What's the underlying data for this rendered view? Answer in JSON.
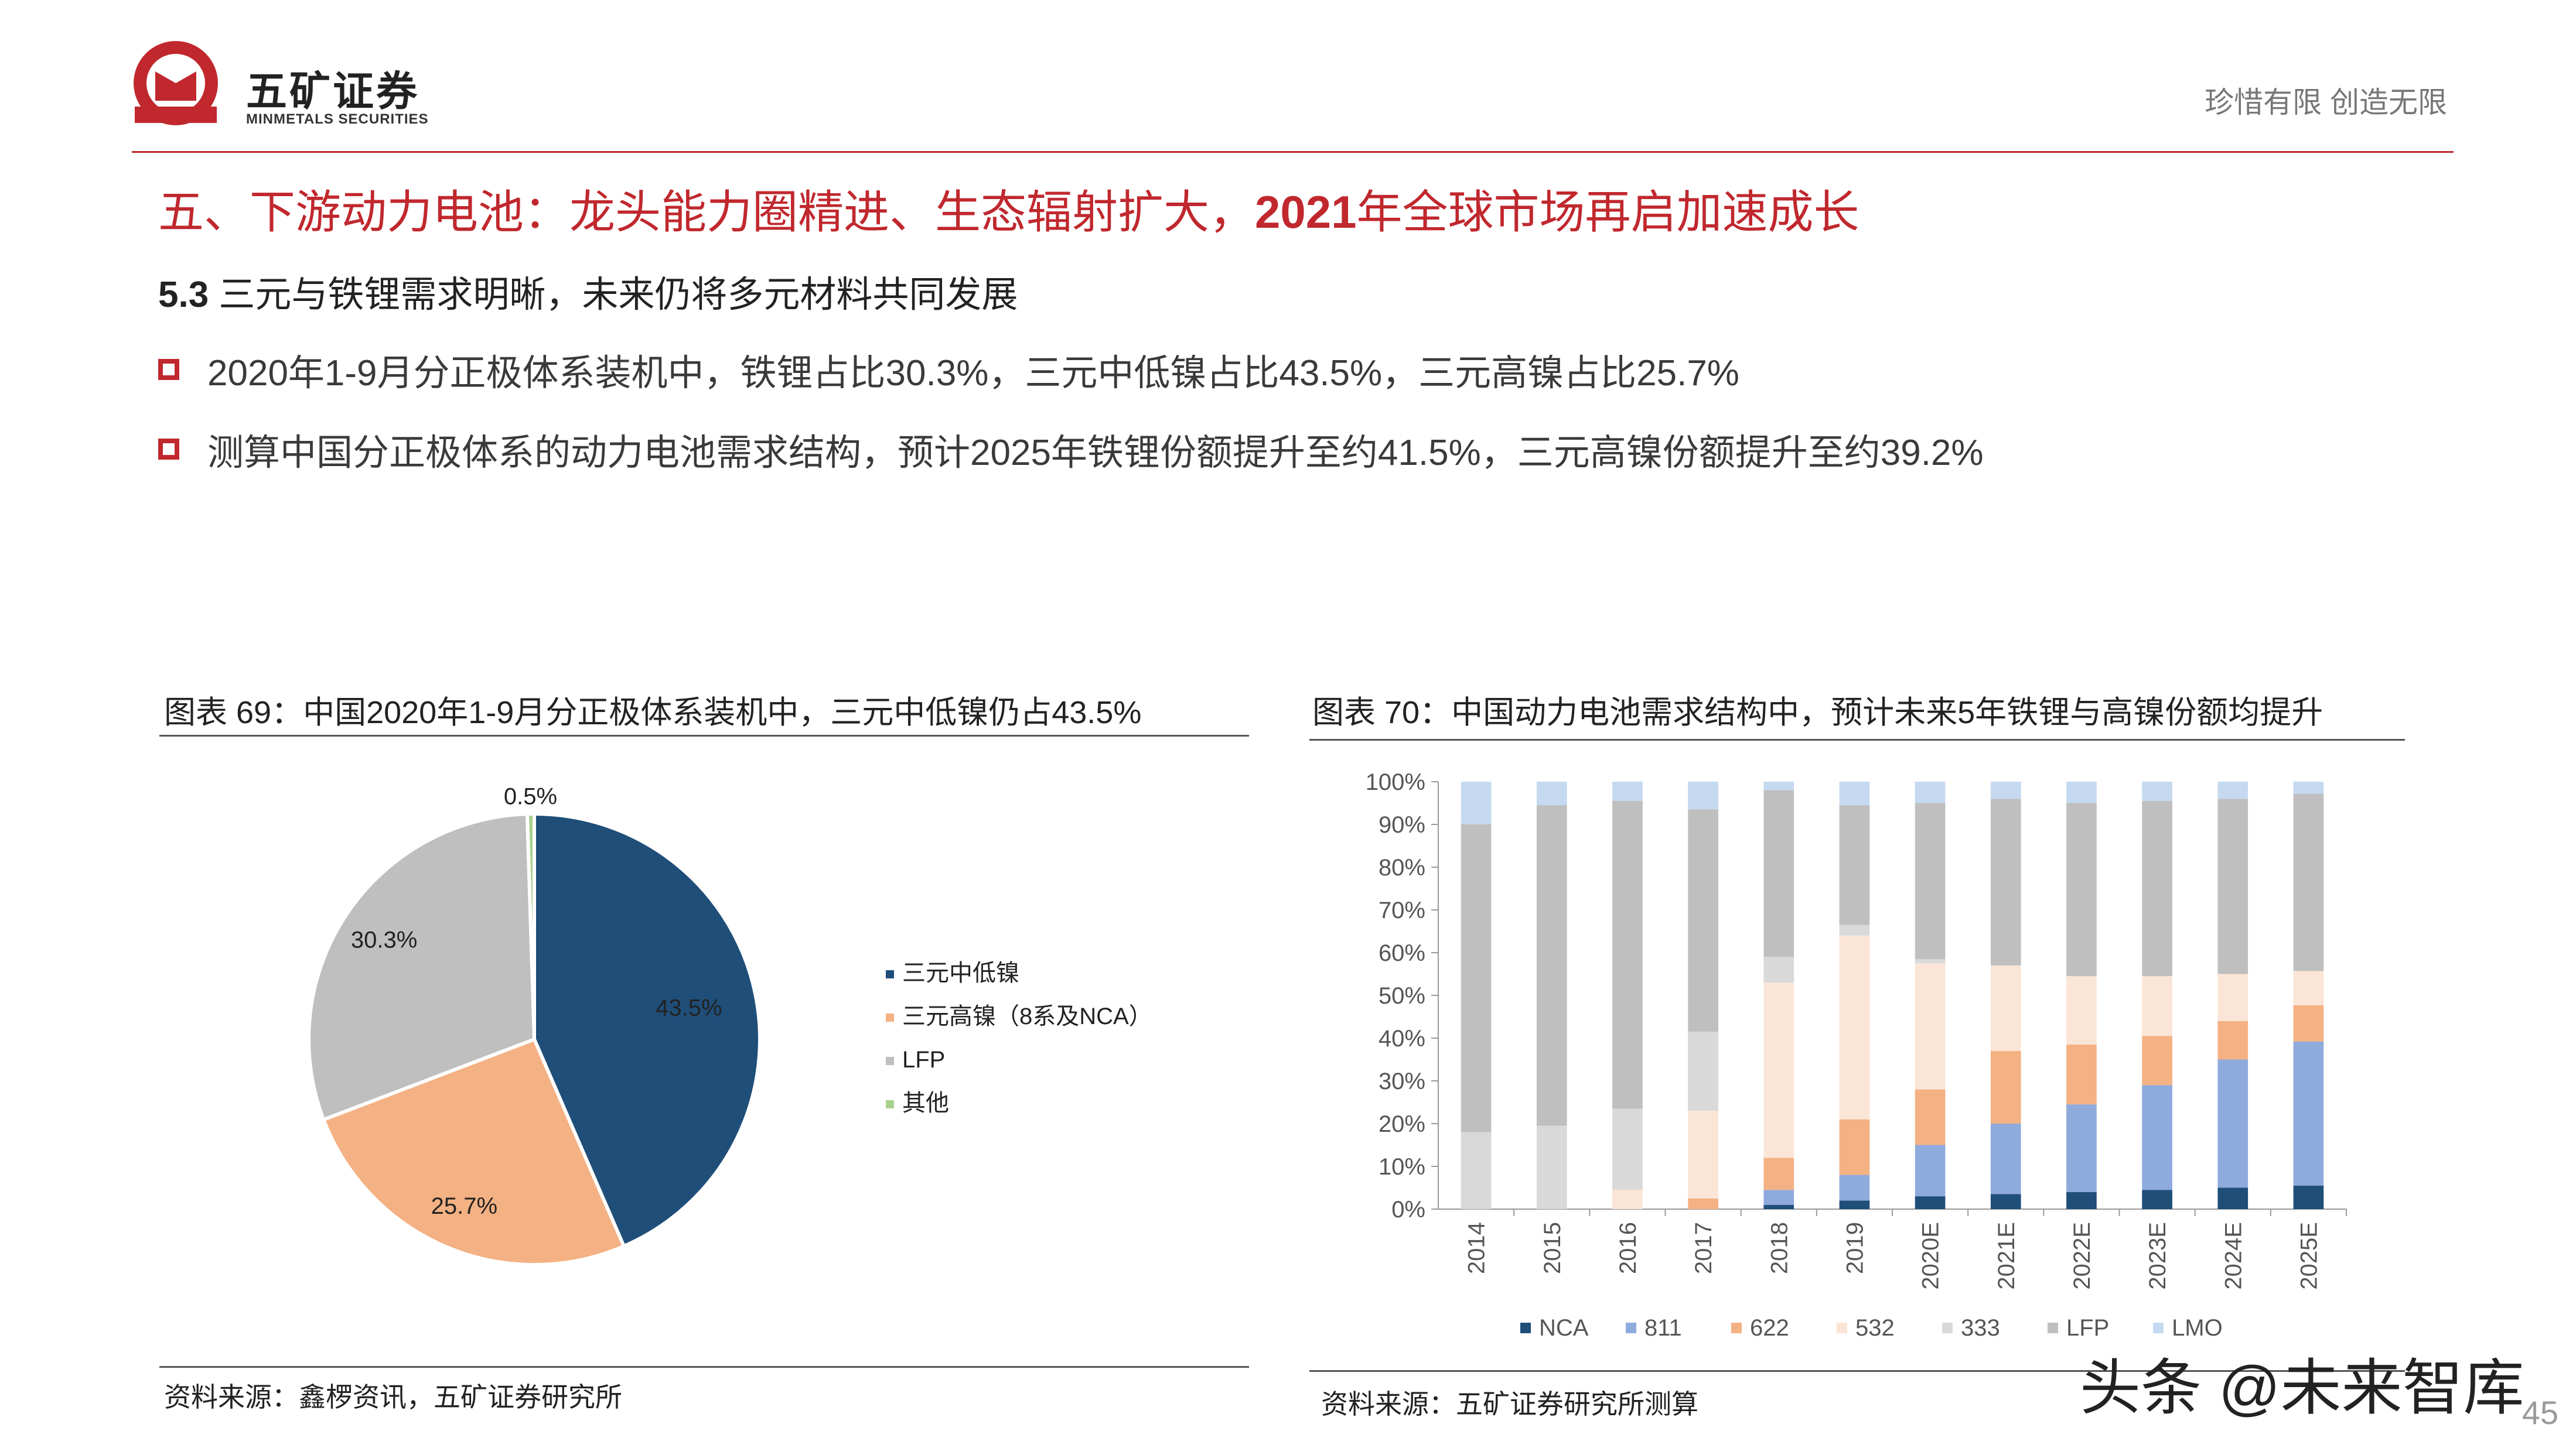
{
  "header": {
    "brand_cn": "五矿证券",
    "brand_en": "MINMETALS SECURITIES",
    "logo_ring_text": "MINMETALS",
    "slogan": "珍惜有限  创造无限"
  },
  "title_prefix": "五、下游动力电池：龙头能力圈精进、生态辐射扩大，",
  "title_year": "2021",
  "title_suffix": "年全球市场再启加速成长",
  "subtitle_num": "5.3",
  "subtitle_text": " 三元与铁锂需求明晰，未来仍将多元材料共同发展",
  "bullets": [
    "2020年1-9月分正极体系装机中，铁锂占比30.3%，三元中低镍占比43.5%，三元高镍占比25.7%",
    "测算中国分正极体系的动力电池需求结构，预计2025年铁锂份额提升至约41.5%，三元高镍份额提升至约39.2%"
  ],
  "figure1": {
    "title": "图表 69：中国2020年1-9月分正极体系装机中，三元中低镍仍占43.5%",
    "source": "资料来源：鑫椤资讯，五矿证券研究所"
  },
  "figure2": {
    "title": "图表 70：中国动力电池需求结构中，预计未来5年铁锂与高镍份额均提升",
    "source": "资料来源：五矿证券研究所测算"
  },
  "watermark": "头条 @未来智库",
  "page_number": "45",
  "chart_data": [
    {
      "type": "pie",
      "categories": [
        "三元中低镍",
        "三元高镍（8系及NCA）",
        "LFP",
        "其他"
      ],
      "values": [
        43.5,
        25.7,
        30.3,
        0.5
      ],
      "labels": [
        "43.5%",
        "25.7%",
        "30.3%",
        "0.5%"
      ],
      "colors": [
        "#1f4e79",
        "#f4b183",
        "#bfbfbf",
        "#a9d18e"
      ],
      "legend_position": "right"
    },
    {
      "type": "bar",
      "stacked": true,
      "categories": [
        "2014",
        "2015",
        "2016",
        "2017",
        "2018",
        "2019",
        "2020E",
        "2021E",
        "2022E",
        "2023E",
        "2024E",
        "2025E"
      ],
      "ylim": [
        0,
        100
      ],
      "yticks": [
        "0%",
        "10%",
        "20%",
        "30%",
        "40%",
        "50%",
        "60%",
        "70%",
        "80%",
        "90%",
        "100%"
      ],
      "grid": false,
      "legend_position": "bottom",
      "series": [
        {
          "name": "NCA",
          "color": "#1f4e79",
          "values": [
            0,
            0,
            0,
            0,
            1,
            2,
            3,
            3.5,
            4,
            4.5,
            5,
            5.5
          ]
        },
        {
          "name": "811",
          "color": "#8faadc",
          "values": [
            0,
            0,
            0,
            0,
            3.5,
            6,
            12,
            16.5,
            20.5,
            24.5,
            30,
            33.7
          ]
        },
        {
          "name": "622",
          "color": "#f4b183",
          "values": [
            0,
            0,
            0,
            2.5,
            7.5,
            13,
            13,
            17,
            14,
            11.5,
            9,
            8.5
          ]
        },
        {
          "name": "532",
          "color": "#fbe5d6",
          "values": [
            0,
            0,
            4.5,
            20.5,
            41,
            43,
            29.5,
            20,
            16,
            14,
            11,
            8
          ]
        },
        {
          "name": "333",
          "color": "#d9d9d9",
          "values": [
            18,
            19.5,
            19,
            18.5,
            6,
            2.5,
            1,
            0,
            0,
            0,
            0,
            0
          ]
        },
        {
          "name": "LFP",
          "color": "#bfbfbf",
          "values": [
            72,
            75,
            72,
            52,
            39,
            28,
            36.5,
            39,
            40.5,
            41,
            41,
            41.5
          ]
        },
        {
          "name": "LMO",
          "color": "#c5d9f1",
          "values": [
            10,
            5.5,
            4.5,
            6.5,
            2,
            5.5,
            5,
            4,
            5,
            4.5,
            4,
            2.8
          ]
        }
      ]
    }
  ]
}
